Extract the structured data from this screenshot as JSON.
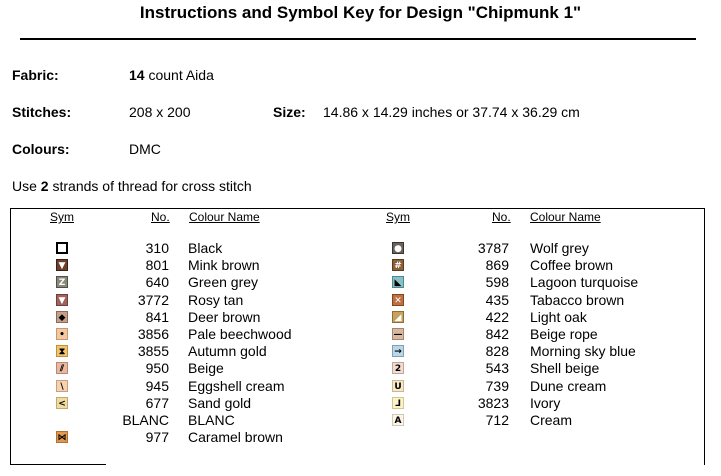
{
  "title": "Instructions and Symbol Key for Design \"Chipmunk 1\"",
  "fabric": {
    "label": "Fabric:",
    "count": "14",
    "text": "count Aida"
  },
  "stitches": {
    "label": "Stitches:",
    "value": "208 x 200"
  },
  "size": {
    "label": "Size:",
    "value": "14.86 x 14.29 inches or 37.74 x 36.29 cm"
  },
  "colours": {
    "label": "Colours:",
    "value": "DMC"
  },
  "strands": {
    "prefix": "Use",
    "count": "2",
    "suffix": "strands of thread for cross stitch"
  },
  "headers": {
    "sym": "Sym",
    "no": "No.",
    "name": "Colour Name"
  },
  "left": [
    {
      "no": "310",
      "name": "Black",
      "bg": "#ffffff",
      "border": "#000000",
      "glyph": "",
      "icon": "square-outline-icon"
    },
    {
      "no": "801",
      "name": "Mink brown",
      "bg": "#6b3f2a",
      "border": "#3a2014",
      "glyph": "▼",
      "icon": "down-triangle-icon"
    },
    {
      "no": "640",
      "name": "Green grey",
      "bg": "#8a8878",
      "border": "#505048",
      "glyph": "Z",
      "icon": "z-letter-icon"
    },
    {
      "no": "3772",
      "name": "Rosy tan",
      "bg": "#a0625c",
      "border": "#70403a",
      "glyph": "▼",
      "icon": "down-triangle-icon"
    },
    {
      "no": "841",
      "name": "Deer brown",
      "bg": "#c8a08a",
      "border": "#8a6a58",
      "glyph": "◆",
      "icon": "diamond-icon"
    },
    {
      "no": "3856",
      "name": "Pale beechwood",
      "bg": "#f4c8a0",
      "border": "#c89870",
      "glyph": "•",
      "icon": "dot-icon"
    },
    {
      "no": "3855",
      "name": "Autumn gold",
      "bg": "#f2c470",
      "border": "#c0903a",
      "glyph": "⧗",
      "icon": "hourglass-icon"
    },
    {
      "no": "950",
      "name": "Beige",
      "bg": "#e8b8a0",
      "border": "#b88870",
      "glyph": "⫽",
      "icon": "slashes-icon"
    },
    {
      "no": "945",
      "name": "Eggshell cream",
      "bg": "#f6d2b0",
      "border": "#c8a080",
      "glyph": "\\",
      "icon": "backslash-icon"
    },
    {
      "no": "677",
      "name": "Sand gold",
      "bg": "#f0dca0",
      "border": "#c0a870",
      "glyph": "<",
      "icon": "less-than-icon"
    },
    {
      "no": "BLANC",
      "name": "BLANC",
      "bg": "",
      "border": "",
      "glyph": "",
      "icon": "empty-symbol-icon"
    },
    {
      "no": "977",
      "name": "Caramel brown",
      "bg": "#e09a50",
      "border": "#b07030",
      "glyph": "⋈",
      "icon": "bowtie-icon"
    }
  ],
  "right": [
    {
      "no": "3787",
      "name": "Wolf grey",
      "bg": "#6a625c",
      "border": "#3a3430",
      "glyph": "●",
      "icon": "circle-icon"
    },
    {
      "no": "869",
      "name": "Coffee brown",
      "bg": "#8a6038",
      "border": "#5a3c20",
      "glyph": "#",
      "icon": "hash-icon"
    },
    {
      "no": "598",
      "name": "Lagoon turquoise",
      "bg": "#88c0c8",
      "border": "#508890",
      "glyph": "◣",
      "icon": "corner-triangle-icon"
    },
    {
      "no": "435",
      "name": "Tabacco brown",
      "bg": "#c07040",
      "border": "#804820",
      "glyph": "✕",
      "icon": "cross-icon"
    },
    {
      "no": "422",
      "name": "Light oak",
      "bg": "#c8a060",
      "border": "#907030",
      "glyph": "◢",
      "icon": "half-triangle-icon"
    },
    {
      "no": "842",
      "name": "Beige rope",
      "bg": "#d8b8a0",
      "border": "#a08870",
      "glyph": "—",
      "icon": "dash-icon"
    },
    {
      "no": "828",
      "name": "Morning sky blue",
      "bg": "#b8d8e8",
      "border": "#80a0b8",
      "glyph": "→",
      "icon": "right-arrow-icon"
    },
    {
      "no": "543",
      "name": "Shell beige",
      "bg": "#f0dcd0",
      "border": "#c0a898",
      "glyph": "2",
      "icon": "two-digit-icon"
    },
    {
      "no": "739",
      "name": "Dune cream",
      "bg": "#f6e8c8",
      "border": "#c8b890",
      "glyph": "U",
      "icon": "u-letter-icon"
    },
    {
      "no": "3823",
      "name": "Ivory",
      "bg": "#fcf4c8",
      "border": "#d0c890",
      "glyph": "⅃",
      "icon": "reverse-l-icon"
    },
    {
      "no": "712",
      "name": "Cream",
      "bg": "#fcf4e4",
      "border": "#d0c8b8",
      "glyph": "A",
      "icon": "a-letter-icon"
    }
  ]
}
